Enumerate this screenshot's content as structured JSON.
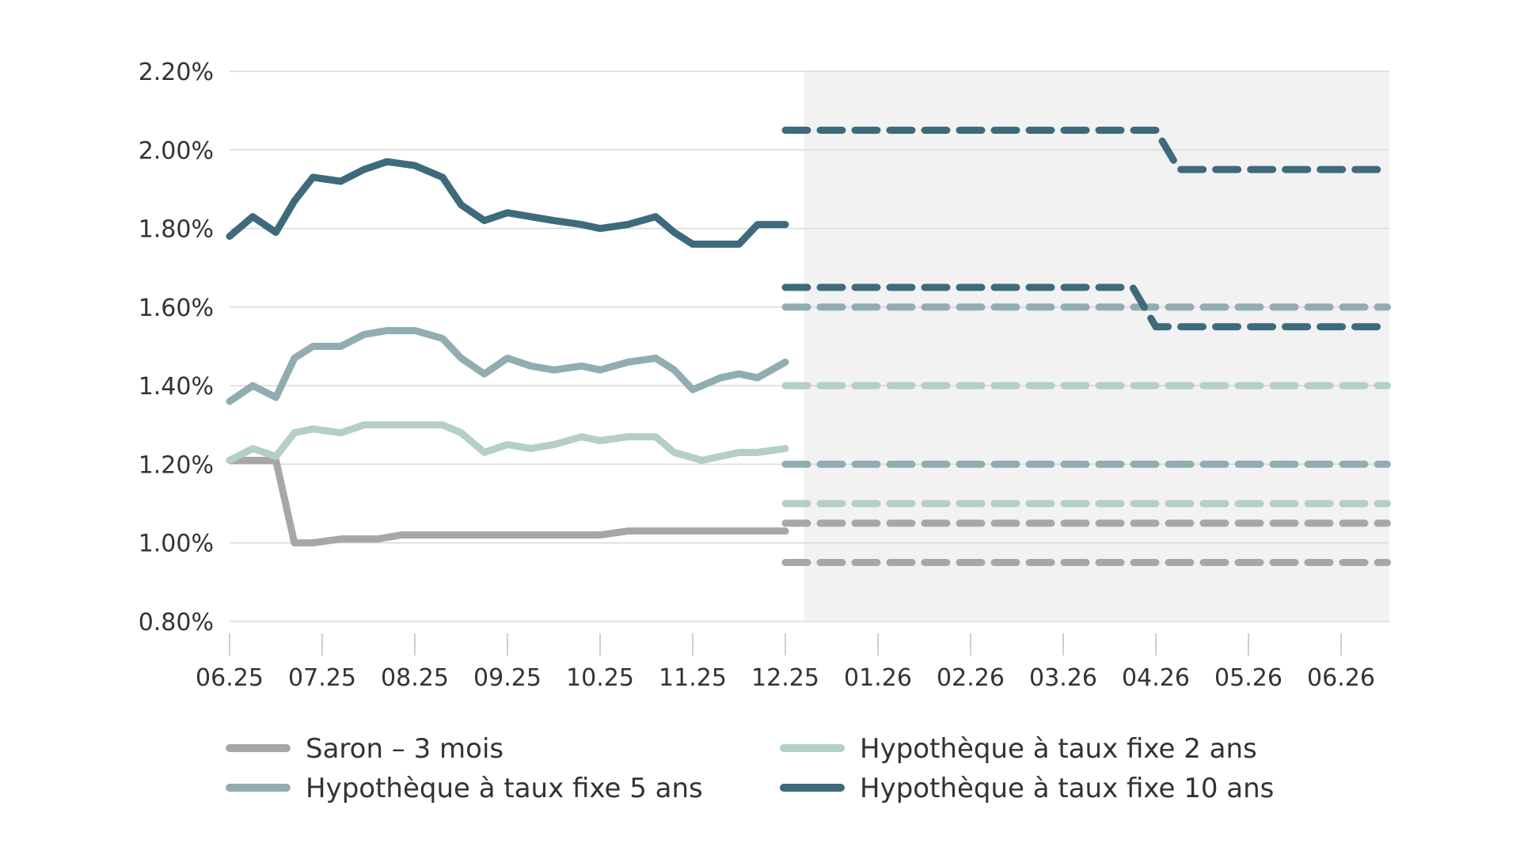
{
  "chart_data": {
    "type": "line",
    "title": "",
    "xlabel": "",
    "ylabel": "",
    "x_ticks": [
      "06.25",
      "07.25",
      "08.25",
      "09.25",
      "10.25",
      "11.25",
      "12.25",
      "01.26",
      "02.26",
      "03.26",
      "04.26",
      "05.26",
      "06.26"
    ],
    "y_ticks": [
      "0.80%",
      "1.00%",
      "1.20%",
      "1.40%",
      "1.60%",
      "1.80%",
      "2.00%",
      "2.20%"
    ],
    "ylim": [
      0.8,
      2.2
    ],
    "xlim": [
      0,
      12.5
    ],
    "forecast_start": 6,
    "grid": "horizontal",
    "legend_position": "bottom",
    "series": [
      {
        "name": "Saron – 3 mois",
        "color": "#a7a7a6",
        "x": [
          0,
          0.25,
          0.5,
          0.7,
          0.9,
          1.2,
          1.6,
          1.85,
          2.2,
          2.6,
          3,
          3.5,
          4,
          4.3,
          4.6,
          5,
          5.5,
          6
        ],
        "values": [
          1.21,
          1.21,
          1.21,
          1.0,
          1.0,
          1.01,
          1.01,
          1.02,
          1.02,
          1.02,
          1.02,
          1.02,
          1.02,
          1.03,
          1.03,
          1.03,
          1.03,
          1.03
        ],
        "forecast": [
          {
            "x": [
              6,
              12.5
            ],
            "values": [
              1.05,
              1.05
            ]
          },
          {
            "x": [
              6,
              12.5
            ],
            "values": [
              0.95,
              0.95
            ]
          }
        ]
      },
      {
        "name": "Hypothèque à taux fixe 2 ans",
        "color": "#b4cfc5",
        "x": [
          0,
          0.25,
          0.5,
          0.7,
          0.9,
          1.2,
          1.45,
          1.7,
          2,
          2.3,
          2.5,
          2.75,
          3,
          3.25,
          3.5,
          3.8,
          4,
          4.3,
          4.6,
          4.8,
          5.1,
          5.5,
          5.7,
          6
        ],
        "values": [
          1.21,
          1.24,
          1.22,
          1.28,
          1.29,
          1.28,
          1.3,
          1.3,
          1.3,
          1.3,
          1.28,
          1.23,
          1.25,
          1.24,
          1.25,
          1.27,
          1.26,
          1.27,
          1.27,
          1.23,
          1.21,
          1.23,
          1.23,
          1.24
        ],
        "forecast": [
          {
            "x": [
              6,
              12.5
            ],
            "values": [
              1.4,
              1.4
            ]
          },
          {
            "x": [
              6,
              12.5
            ],
            "values": [
              1.1,
              1.1
            ]
          }
        ]
      },
      {
        "name": "Hypothèque à taux fixe 5 ans",
        "color": "#91adb2",
        "x": [
          0,
          0.25,
          0.5,
          0.7,
          0.9,
          1.2,
          1.45,
          1.7,
          2,
          2.3,
          2.5,
          2.75,
          3,
          3.25,
          3.5,
          3.8,
          4,
          4.3,
          4.6,
          4.8,
          5,
          5.3,
          5.5,
          5.7,
          6
        ],
        "values": [
          1.36,
          1.4,
          1.37,
          1.47,
          1.5,
          1.5,
          1.53,
          1.54,
          1.54,
          1.52,
          1.47,
          1.43,
          1.47,
          1.45,
          1.44,
          1.45,
          1.44,
          1.46,
          1.47,
          1.44,
          1.39,
          1.42,
          1.43,
          1.42,
          1.46
        ],
        "forecast": [
          {
            "x": [
              6,
              12.5
            ],
            "values": [
              1.6,
              1.6
            ]
          },
          {
            "x": [
              6,
              12.5
            ],
            "values": [
              1.2,
              1.2
            ]
          }
        ]
      },
      {
        "name": "Hypothèque à taux fixe 10 ans",
        "color": "#3d6b7b",
        "x": [
          0,
          0.25,
          0.5,
          0.7,
          0.9,
          1.2,
          1.45,
          1.7,
          2,
          2.3,
          2.5,
          2.75,
          3,
          3.25,
          3.5,
          3.8,
          4,
          4.3,
          4.6,
          4.8,
          5,
          5.3,
          5.5,
          5.7,
          6
        ],
        "values": [
          1.78,
          1.83,
          1.79,
          1.87,
          1.93,
          1.92,
          1.95,
          1.97,
          1.96,
          1.93,
          1.86,
          1.82,
          1.84,
          1.83,
          1.82,
          1.81,
          1.8,
          1.81,
          1.83,
          1.79,
          1.76,
          1.76,
          1.76,
          1.81,
          1.81
        ],
        "forecast": [
          {
            "x": [
              6,
              10,
              10.25,
              12.5
            ],
            "values": [
              2.05,
              2.05,
              1.95,
              1.95
            ]
          },
          {
            "x": [
              6,
              9.75,
              10,
              12.5
            ],
            "values": [
              1.65,
              1.65,
              1.55,
              1.55
            ]
          }
        ]
      }
    ]
  },
  "colors": {
    "forecast_background": "#f2f2f2",
    "gridline": "#d9d9d9",
    "text": "#333333"
  }
}
